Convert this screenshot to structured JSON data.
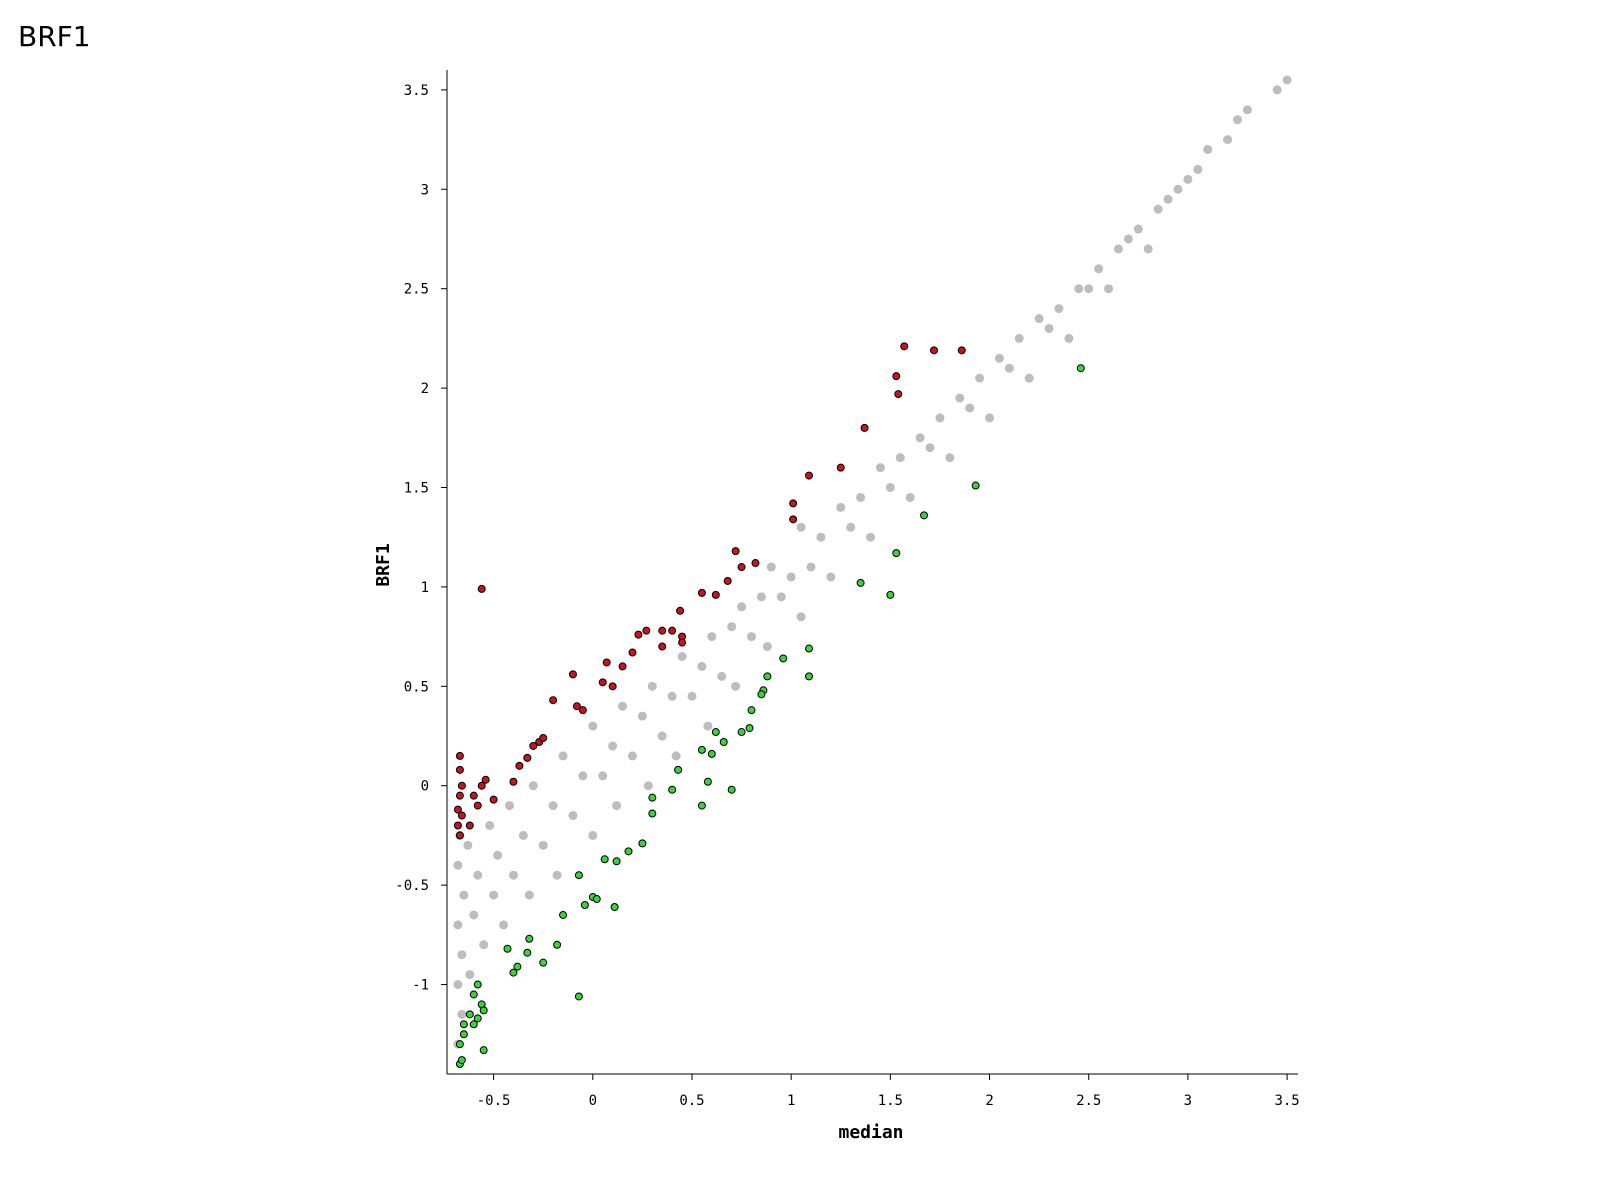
{
  "page_title": "BRF1",
  "chart_data": {
    "type": "scatter",
    "xlabel": "median",
    "ylabel": "BRF1",
    "xlim": [
      -0.735,
      3.555
    ],
    "ylim": [
      -1.45,
      3.6
    ],
    "xticks": [
      -0.5,
      0,
      0.5,
      1,
      1.5,
      2,
      2.5,
      3,
      3.5
    ],
    "yticks": [
      -1,
      -0.5,
      0,
      0.5,
      1,
      1.5,
      2,
      2.5,
      3,
      3.5
    ],
    "series": [
      {
        "color": "#bdbdbd",
        "x": [
          -0.68,
          -0.68,
          -0.68,
          -0.68,
          -0.67,
          -0.66,
          -0.66,
          -0.65,
          -0.63,
          -0.62,
          -0.6,
          -0.58,
          -0.55,
          -0.52,
          -0.5,
          -0.48,
          -0.45,
          -0.42,
          -0.4,
          -0.35,
          -0.32,
          -0.3,
          -0.25,
          -0.2,
          -0.18,
          -0.15,
          -0.1,
          -0.05,
          0,
          0,
          0.05,
          0.1,
          0.12,
          0.15,
          0.2,
          0.25,
          0.28,
          0.3,
          0.35,
          0.4,
          0.42,
          0.45,
          0.5,
          0.55,
          0.58,
          0.6,
          0.65,
          0.7,
          0.72,
          0.75,
          0.8,
          0.85,
          0.88,
          0.9,
          0.95,
          1,
          1.05,
          1.05,
          1.1,
          1.15,
          1.2,
          1.25,
          1.3,
          1.35,
          1.4,
          1.45,
          1.5,
          1.55,
          1.6,
          1.65,
          1.7,
          1.75,
          1.8,
          1.85,
          1.9,
          1.95,
          2,
          2.05,
          2.1,
          2.15,
          2.2,
          2.25,
          2.3,
          2.35,
          2.4,
          2.45,
          2.5,
          2.55,
          2.6,
          2.65,
          2.7,
          2.75,
          2.8,
          2.85,
          2.9,
          2.95,
          3,
          3.05,
          3.1,
          3.2,
          3.25,
          3.3,
          3.45,
          3.5
        ],
        "values": [
          -1.3,
          -1,
          -0.7,
          -0.4,
          -0.25,
          -1.15,
          -0.85,
          -0.55,
          -0.3,
          -0.95,
          -0.65,
          -0.45,
          -0.8,
          -0.2,
          -0.55,
          -0.35,
          -0.7,
          -0.1,
          -0.45,
          -0.25,
          -0.55,
          0,
          -0.3,
          -0.1,
          -0.45,
          0.15,
          -0.15,
          0.05,
          -0.25,
          0.3,
          0.05,
          0.2,
          -0.1,
          0.4,
          0.15,
          0.35,
          0,
          0.5,
          0.25,
          0.45,
          0.15,
          0.65,
          0.45,
          0.6,
          0.3,
          0.75,
          0.55,
          0.8,
          0.5,
          0.9,
          0.75,
          0.95,
          0.7,
          1.1,
          0.95,
          1.05,
          0.85,
          1.3,
          1.1,
          1.25,
          1.05,
          1.4,
          1.3,
          1.45,
          1.25,
          1.6,
          1.5,
          1.65,
          1.45,
          1.75,
          1.7,
          1.85,
          1.65,
          1.95,
          1.9,
          2.05,
          1.85,
          2.15,
          2.1,
          2.25,
          2.05,
          2.35,
          2.3,
          2.4,
          2.25,
          2.5,
          2.5,
          2.6,
          2.5,
          2.7,
          2.75,
          2.8,
          2.7,
          2.9,
          2.95,
          3,
          3.05,
          3.1,
          3.2,
          3.25,
          3.35,
          3.4,
          3.5,
          3.55
        ]
      },
      {
        "color": "#c8141e",
        "x": [
          -0.56,
          -0.67,
          -0.67,
          -0.66,
          -0.67,
          -0.68,
          -0.68,
          -0.67,
          -0.66,
          -0.6,
          -0.58,
          -0.56,
          -0.54,
          -0.5,
          -0.4,
          -0.37,
          -0.33,
          -0.3,
          -0.27,
          -0.25,
          -0.2,
          -0.1,
          -0.08,
          -0.05,
          0.05,
          0.07,
          0.1,
          0.15,
          0.2,
          0.23,
          0.27,
          0.35,
          0.4,
          0.44,
          0.45,
          0.55,
          0.62,
          0.68,
          0.72,
          0.75,
          0.82,
          1.01,
          1.01,
          1.09,
          1.25,
          1.37,
          1.53,
          1.54,
          1.57,
          1.72,
          1.86,
          -0.62,
          0.45,
          0.35
        ],
        "values": [
          0.99,
          0.15,
          0.08,
          0,
          -0.05,
          -0.12,
          -0.2,
          -0.25,
          -0.15,
          -0.05,
          -0.1,
          0,
          0.03,
          -0.07,
          0.02,
          0.1,
          0.14,
          0.2,
          0.22,
          0.24,
          0.43,
          0.56,
          0.4,
          0.38,
          0.52,
          0.62,
          0.5,
          0.6,
          0.67,
          0.76,
          0.78,
          0.78,
          0.78,
          0.88,
          0.75,
          0.97,
          0.96,
          1.03,
          1.18,
          1.1,
          1.12,
          1.42,
          1.34,
          1.56,
          1.6,
          1.8,
          2.06,
          1.97,
          2.21,
          2.19,
          2.19,
          -0.2,
          0.72,
          0.7
        ]
      },
      {
        "color": "#3cd23c",
        "x": [
          2.46,
          1.93,
          1.67,
          1.53,
          1.35,
          1.5,
          1.09,
          1.09,
          0.96,
          0.88,
          0.86,
          0.85,
          0.8,
          0.79,
          0.75,
          0.66,
          0.62,
          0.6,
          0.55,
          0.43,
          0.58,
          0.4,
          0.55,
          0.7,
          0.3,
          0.3,
          0.25,
          0.18,
          0.12,
          0.06,
          0,
          0.02,
          -0.04,
          0.11,
          -0.07,
          -0.15,
          -0.18,
          -0.25,
          -0.32,
          -0.33,
          -0.38,
          -0.4,
          -0.43,
          -0.07,
          -0.55,
          -0.58,
          -0.56,
          -0.55,
          -0.6,
          -0.6,
          -0.58,
          -0.62,
          -0.65,
          -0.67,
          -0.67,
          -0.66,
          -0.65
        ],
        "values": [
          2.1,
          1.51,
          1.36,
          1.17,
          1.02,
          0.96,
          0.69,
          0.55,
          0.64,
          0.55,
          0.48,
          0.46,
          0.38,
          0.29,
          0.27,
          0.22,
          0.27,
          0.16,
          0.18,
          0.08,
          0.02,
          -0.02,
          -0.1,
          -0.02,
          -0.06,
          -0.14,
          -0.29,
          -0.33,
          -0.38,
          -0.37,
          -0.56,
          -0.57,
          -0.6,
          -0.61,
          -0.45,
          -0.65,
          -0.8,
          -0.89,
          -0.77,
          -0.84,
          -0.91,
          -0.94,
          -0.82,
          -1.06,
          -1.33,
          -1.17,
          -1.1,
          -1.13,
          -1.2,
          -1.05,
          -1,
          -1.15,
          -1.25,
          -1.3,
          -1.4,
          -1.38,
          -1.2
        ]
      }
    ]
  }
}
